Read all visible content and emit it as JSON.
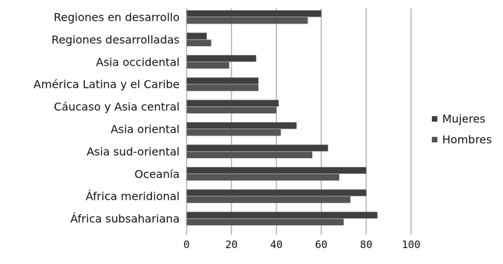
{
  "chart_data": {
    "type": "bar",
    "orientation": "horizontal",
    "title": "",
    "xlabel": "",
    "ylabel": "",
    "xlim": [
      0,
      100
    ],
    "x_ticks": [
      "0",
      "20",
      "40",
      "60",
      "80",
      "100"
    ],
    "grid": "vertical",
    "legend_position": "right",
    "categories": [
      "Regiones en desarrollo",
      "Regiones desarrolladas",
      "Asia occidental",
      "América Latina y el Caribe",
      "Cáucaso y Asia central",
      "Asia oriental",
      "Asia sud-oriental",
      "Oceanía",
      "África meridional",
      "África subsahariana"
    ],
    "series": [
      {
        "name": "Mujeres",
        "color": "#404040",
        "values": [
          60,
          9,
          31,
          32,
          41,
          49,
          63,
          80,
          80,
          85
        ]
      },
      {
        "name": "Hombres",
        "color": "#555555",
        "values": [
          54,
          11,
          19,
          32,
          40,
          42,
          56,
          68,
          73,
          70
        ]
      }
    ]
  }
}
